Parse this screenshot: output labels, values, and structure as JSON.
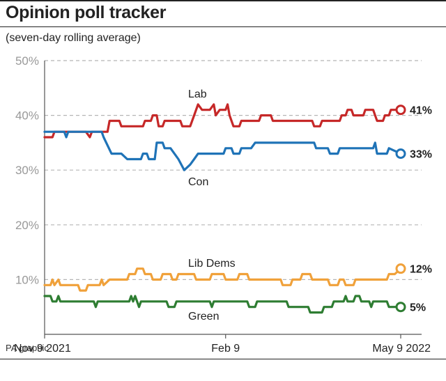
{
  "header": {
    "title": "Opinion poll tracker",
    "subtitle": "(seven-day rolling average)"
  },
  "footer": {
    "credit": "PA graphic"
  },
  "chart_data": {
    "type": "line",
    "title": "Opinion poll tracker",
    "subtitle": "(seven-day rolling average)",
    "ylim": [
      0,
      50
    ],
    "yticks": [
      "50%",
      "40%",
      "30%",
      "20%",
      "10%"
    ],
    "ytick_values": [
      50,
      40,
      30,
      20,
      10
    ],
    "grid": true,
    "x_tick_labels": [
      "Nov 9 2021",
      "Feb 9",
      "May 9 2022"
    ],
    "x_tick_dates": [
      "2021-11-09",
      "2022-02-09",
      "2022-05-09"
    ],
    "x_range": [
      "2021-11-09",
      "2022-05-09"
    ],
    "series": [
      {
        "name": "Lab",
        "color": "#c62828",
        "last_label": "41%",
        "points": [
          [
            "2021-11-09",
            36
          ],
          [
            "2021-11-13",
            36
          ],
          [
            "2021-11-14",
            37
          ],
          [
            "2021-11-30",
            37
          ],
          [
            "2021-12-02",
            36
          ],
          [
            "2021-12-03",
            37
          ],
          [
            "2021-12-11",
            37
          ],
          [
            "2021-12-12",
            39
          ],
          [
            "2021-12-17",
            39
          ],
          [
            "2021-12-18",
            38
          ],
          [
            "2021-12-29",
            38
          ],
          [
            "2021-12-30",
            39
          ],
          [
            "2022-01-02",
            39
          ],
          [
            "2022-01-03",
            40
          ],
          [
            "2022-01-05",
            40
          ],
          [
            "2022-01-06",
            38
          ],
          [
            "2022-01-08",
            38
          ],
          [
            "2022-01-09",
            39
          ],
          [
            "2022-01-17",
            39
          ],
          [
            "2022-01-18",
            38
          ],
          [
            "2022-01-22",
            38
          ],
          [
            "2022-01-24",
            40
          ],
          [
            "2022-01-26",
            42
          ],
          [
            "2022-01-28",
            41
          ],
          [
            "2022-02-01",
            41
          ],
          [
            "2022-02-03",
            42
          ],
          [
            "2022-02-04",
            40
          ],
          [
            "2022-02-06",
            41
          ],
          [
            "2022-02-09",
            41
          ],
          [
            "2022-02-10",
            42
          ],
          [
            "2022-02-11",
            40
          ],
          [
            "2022-02-13",
            38
          ],
          [
            "2022-02-16",
            38
          ],
          [
            "2022-02-17",
            39
          ],
          [
            "2022-02-26",
            39
          ],
          [
            "2022-02-27",
            40
          ],
          [
            "2022-03-04",
            40
          ],
          [
            "2022-03-05",
            39
          ],
          [
            "2022-03-25",
            39
          ],
          [
            "2022-03-26",
            38
          ],
          [
            "2022-03-29",
            38
          ],
          [
            "2022-03-30",
            39
          ],
          [
            "2022-04-08",
            39
          ],
          [
            "2022-04-09",
            40
          ],
          [
            "2022-04-11",
            40
          ],
          [
            "2022-04-12",
            41
          ],
          [
            "2022-04-14",
            41
          ],
          [
            "2022-04-15",
            40
          ],
          [
            "2022-04-20",
            40
          ],
          [
            "2022-04-21",
            41
          ],
          [
            "2022-04-25",
            41
          ],
          [
            "2022-04-26",
            40
          ],
          [
            "2022-04-27",
            39
          ],
          [
            "2022-04-30",
            39
          ],
          [
            "2022-05-01",
            40
          ],
          [
            "2022-05-03",
            40
          ],
          [
            "2022-05-04",
            41
          ],
          [
            "2022-05-09",
            41
          ]
        ]
      },
      {
        "name": "Con",
        "color": "#1f73b7",
        "last_label": "33%",
        "points": [
          [
            "2021-11-09",
            37
          ],
          [
            "2021-11-19",
            37
          ],
          [
            "2021-11-20",
            36
          ],
          [
            "2021-11-21",
            37
          ],
          [
            "2021-12-08",
            37
          ],
          [
            "2021-12-09",
            36
          ],
          [
            "2021-12-13",
            33
          ],
          [
            "2021-12-18",
            33
          ],
          [
            "2021-12-21",
            32
          ],
          [
            "2021-12-28",
            32
          ],
          [
            "2021-12-29",
            33
          ],
          [
            "2021-12-31",
            33
          ],
          [
            "2022-01-01",
            32
          ],
          [
            "2022-01-04",
            32
          ],
          [
            "2022-01-05",
            35
          ],
          [
            "2022-01-08",
            35
          ],
          [
            "2022-01-09",
            34
          ],
          [
            "2022-01-12",
            34
          ],
          [
            "2022-01-16",
            32
          ],
          [
            "2022-01-19",
            30
          ],
          [
            "2022-01-22",
            31
          ],
          [
            "2022-01-24",
            32
          ],
          [
            "2022-01-26",
            33
          ],
          [
            "2022-02-08",
            33
          ],
          [
            "2022-02-09",
            34
          ],
          [
            "2022-02-12",
            34
          ],
          [
            "2022-02-13",
            33
          ],
          [
            "2022-02-16",
            33
          ],
          [
            "2022-02-17",
            34
          ],
          [
            "2022-02-22",
            34
          ],
          [
            "2022-02-24",
            35
          ],
          [
            "2022-03-26",
            35
          ],
          [
            "2022-03-27",
            34
          ],
          [
            "2022-04-02",
            34
          ],
          [
            "2022-04-03",
            33
          ],
          [
            "2022-04-07",
            33
          ],
          [
            "2022-04-08",
            34
          ],
          [
            "2022-04-25",
            34
          ],
          [
            "2022-04-26",
            35
          ],
          [
            "2022-04-27",
            33
          ],
          [
            "2022-05-02",
            33
          ],
          [
            "2022-05-03",
            34
          ],
          [
            "2022-05-09",
            33
          ]
        ]
      },
      {
        "name": "Lib Dems",
        "color": "#f0a13a",
        "last_label": "12%",
        "points": [
          [
            "2021-11-09",
            9
          ],
          [
            "2021-11-12",
            9
          ],
          [
            "2021-11-13",
            10
          ],
          [
            "2021-11-14",
            9
          ],
          [
            "2021-11-16",
            10
          ],
          [
            "2021-11-17",
            9
          ],
          [
            "2021-11-26",
            9
          ],
          [
            "2021-11-27",
            8
          ],
          [
            "2021-11-30",
            8
          ],
          [
            "2021-12-01",
            9
          ],
          [
            "2021-12-07",
            9
          ],
          [
            "2021-12-08",
            10
          ],
          [
            "2021-12-09",
            9
          ],
          [
            "2021-12-12",
            10
          ],
          [
            "2021-12-21",
            10
          ],
          [
            "2021-12-22",
            11
          ],
          [
            "2021-12-25",
            11
          ],
          [
            "2021-12-26",
            12
          ],
          [
            "2021-12-29",
            12
          ],
          [
            "2021-12-30",
            11
          ],
          [
            "2022-01-02",
            11
          ],
          [
            "2022-01-03",
            10
          ],
          [
            "2022-01-07",
            10
          ],
          [
            "2022-01-08",
            11
          ],
          [
            "2022-01-12",
            11
          ],
          [
            "2022-01-13",
            10
          ],
          [
            "2022-01-15",
            10
          ],
          [
            "2022-01-16",
            11
          ],
          [
            "2022-01-24",
            11
          ],
          [
            "2022-01-25",
            10
          ],
          [
            "2022-02-01",
            10
          ],
          [
            "2022-02-02",
            11
          ],
          [
            "2022-02-08",
            11
          ],
          [
            "2022-02-09",
            10
          ],
          [
            "2022-02-15",
            10
          ],
          [
            "2022-02-16",
            11
          ],
          [
            "2022-02-20",
            11
          ],
          [
            "2022-02-21",
            10
          ],
          [
            "2022-03-09",
            10
          ],
          [
            "2022-03-10",
            9
          ],
          [
            "2022-03-14",
            9
          ],
          [
            "2022-03-15",
            10
          ],
          [
            "2022-03-19",
            10
          ],
          [
            "2022-03-20",
            11
          ],
          [
            "2022-03-24",
            11
          ],
          [
            "2022-03-25",
            10
          ],
          [
            "2022-04-02",
            10
          ],
          [
            "2022-04-03",
            9
          ],
          [
            "2022-04-07",
            9
          ],
          [
            "2022-04-08",
            10
          ],
          [
            "2022-04-10",
            10
          ],
          [
            "2022-04-11",
            9
          ],
          [
            "2022-04-15",
            9
          ],
          [
            "2022-04-16",
            10
          ],
          [
            "2022-05-02",
            10
          ],
          [
            "2022-05-03",
            11
          ],
          [
            "2022-05-06",
            11
          ],
          [
            "2022-05-09",
            12
          ]
        ]
      },
      {
        "name": "Green",
        "color": "#2e7d32",
        "last_label": "5%",
        "points": [
          [
            "2021-11-09",
            7
          ],
          [
            "2021-11-12",
            7
          ],
          [
            "2021-11-13",
            6
          ],
          [
            "2021-11-15",
            6
          ],
          [
            "2021-11-16",
            7
          ],
          [
            "2021-11-17",
            6
          ],
          [
            "2021-12-04",
            6
          ],
          [
            "2021-12-05",
            5
          ],
          [
            "2021-12-06",
            6
          ],
          [
            "2021-12-22",
            6
          ],
          [
            "2021-12-23",
            7
          ],
          [
            "2021-12-24",
            6
          ],
          [
            "2021-12-25",
            7
          ],
          [
            "2021-12-26",
            6
          ],
          [
            "2021-12-27",
            5
          ],
          [
            "2021-12-28",
            6
          ],
          [
            "2022-01-10",
            6
          ],
          [
            "2022-01-11",
            5
          ],
          [
            "2022-01-14",
            5
          ],
          [
            "2022-01-15",
            6
          ],
          [
            "2022-02-01",
            6
          ],
          [
            "2022-02-02",
            5
          ],
          [
            "2022-02-03",
            6
          ],
          [
            "2022-02-20",
            6
          ],
          [
            "2022-02-21",
            5
          ],
          [
            "2022-02-24",
            5
          ],
          [
            "2022-02-25",
            6
          ],
          [
            "2022-03-12",
            6
          ],
          [
            "2022-03-13",
            5
          ],
          [
            "2022-03-23",
            5
          ],
          [
            "2022-03-24",
            4
          ],
          [
            "2022-03-30",
            4
          ],
          [
            "2022-03-31",
            5
          ],
          [
            "2022-04-04",
            5
          ],
          [
            "2022-04-05",
            6
          ],
          [
            "2022-04-10",
            6
          ],
          [
            "2022-04-11",
            7
          ],
          [
            "2022-04-12",
            6
          ],
          [
            "2022-04-15",
            6
          ],
          [
            "2022-04-16",
            7
          ],
          [
            "2022-04-18",
            7
          ],
          [
            "2022-04-19",
            6
          ],
          [
            "2022-04-23",
            6
          ],
          [
            "2022-04-24",
            5
          ],
          [
            "2022-04-25",
            6
          ],
          [
            "2022-05-02",
            6
          ],
          [
            "2022-05-03",
            5
          ],
          [
            "2022-05-09",
            5
          ]
        ]
      }
    ]
  }
}
